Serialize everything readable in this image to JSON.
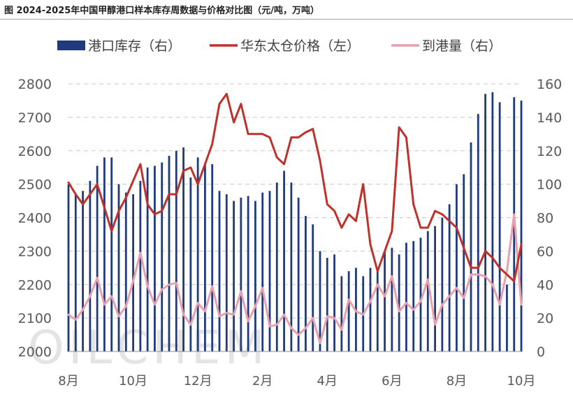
{
  "title": "图  2024-2025年中国甲醇港口样本库存周数据与价格对比图（元/吨，万吨）",
  "watermark": "OILCHEM",
  "colors": {
    "inventory": "#1f3a7d",
    "price": "#c0312b",
    "arrivals": "#e8a0ad",
    "grid": "#c8c8c8"
  },
  "chart_data": {
    "type": "bar+line",
    "x_tick_labels": [
      "8月",
      "10月",
      "12月",
      "2月",
      "4月",
      "6月",
      "8月",
      "10月"
    ],
    "x_tick_index": [
      0,
      9,
      18,
      27,
      36,
      45,
      54,
      63
    ],
    "y_left": {
      "range": [
        2000,
        2800
      ],
      "ticks": [
        2000,
        2100,
        2200,
        2300,
        2400,
        2500,
        2600,
        2700,
        2800
      ]
    },
    "y_right": {
      "range": [
        0,
        160
      ],
      "ticks": [
        0,
        20,
        40,
        60,
        80,
        100,
        120,
        140,
        160
      ]
    },
    "grid": "dashed horizontal",
    "legend_position": "top",
    "series": [
      {
        "name": "港口库存（右）",
        "type": "bar",
        "axis": "right",
        "values": [
          100,
          94,
          96,
          102,
          111,
          116,
          116,
          100,
          95,
          94,
          102,
          110,
          111,
          113,
          117,
          120,
          122,
          104,
          116,
          112,
          112,
          96,
          94,
          90,
          92,
          93,
          90,
          95,
          96,
          101,
          108,
          101,
          92,
          81,
          76,
          60,
          56,
          58,
          45,
          48,
          50,
          45,
          50,
          50,
          60,
          62,
          58,
          65,
          66,
          68,
          72,
          75,
          80,
          88,
          100,
          106,
          125,
          142,
          154,
          155,
          149,
          40,
          152,
          150
        ],
        "_comment": ""
      },
      {
        "name": "华东太仓价格（左）",
        "type": "line",
        "axis": "left",
        "values": [
          2505,
          2470,
          2440,
          2470,
          2500,
          2430,
          2360,
          2420,
          2460,
          2510,
          2560,
          2440,
          2410,
          2420,
          2470,
          2470,
          2540,
          2550,
          2500,
          2560,
          2620,
          2740,
          2770,
          2685,
          2740,
          2650,
          2650,
          2650,
          2640,
          2580,
          2560,
          2640,
          2640,
          2655,
          2665,
          2570,
          2440,
          2420,
          2370,
          2410,
          2390,
          2500,
          2320,
          2240,
          2300,
          2360,
          2670,
          2640,
          2440,
          2370,
          2370,
          2420,
          2410,
          2390,
          2370,
          2310,
          2250,
          2250,
          2300,
          2280,
          2250,
          2230,
          2210,
          2320
        ]
      },
      {
        "name": "到港量（右）",
        "type": "line",
        "axis": "right",
        "values": [
          22,
          19,
          25,
          33,
          44,
          28,
          33,
          21,
          27,
          42,
          59,
          39,
          28,
          37,
          40,
          41,
          22,
          16,
          29,
          24,
          39,
          21,
          23,
          22,
          36,
          18,
          27,
          38,
          15,
          16,
          22,
          14,
          10,
          14,
          20,
          5,
          21,
          20,
          13,
          31,
          24,
          22,
          30,
          40,
          33,
          45,
          24,
          29,
          25,
          30,
          43,
          16,
          28,
          33,
          38,
          32,
          46,
          46,
          45,
          40,
          28,
          48,
          82,
          28
        ]
      }
    ]
  }
}
